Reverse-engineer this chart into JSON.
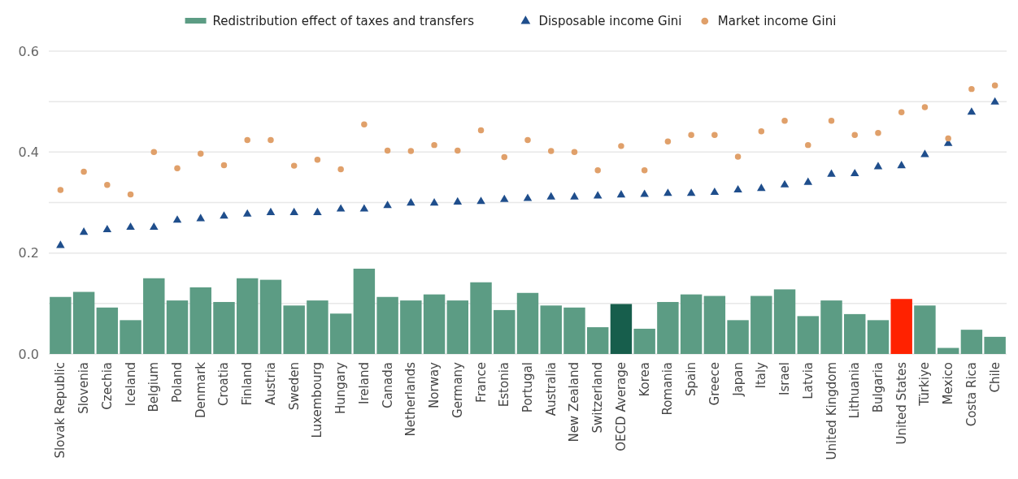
{
  "chart_data": {
    "type": "bar",
    "categories": [
      "Slovak Republic",
      "Slovenia",
      "Czechia",
      "Iceland",
      "Belgium",
      "Poland",
      "Denmark",
      "Croatia",
      "Finland",
      "Austria",
      "Sweden",
      "Luxembourg",
      "Hungary",
      "Ireland",
      "Canada",
      "Netherlands",
      "Norway",
      "Germany",
      "France",
      "Estonia",
      "Portugal",
      "Australia",
      "New Zealand",
      "Switzerland",
      "OECD Average",
      "Korea",
      "Romania",
      "Spain",
      "Greece",
      "Japan",
      "Italy",
      "Israel",
      "Latvia",
      "United Kingdom",
      "Lithuania",
      "Bulgaria",
      "United States",
      "Türkiye",
      "Mexico",
      "Costa Rica",
      "Chile"
    ],
    "series": [
      {
        "name": "Redistribution effect of taxes and transfers",
        "color": "#5c9c84",
        "colors": [
          "#5c9c84",
          "#5c9c84",
          "#5c9c84",
          "#5c9c84",
          "#5c9c84",
          "#5c9c84",
          "#5c9c84",
          "#5c9c84",
          "#5c9c84",
          "#5c9c84",
          "#5c9c84",
          "#5c9c84",
          "#5c9c84",
          "#5c9c84",
          "#5c9c84",
          "#5c9c84",
          "#5c9c84",
          "#5c9c84",
          "#5c9c84",
          "#5c9c84",
          "#5c9c84",
          "#5c9c84",
          "#5c9c84",
          "#5c9c84",
          "#175e4c",
          "#5c9c84",
          "#5c9c84",
          "#5c9c84",
          "#5c9c84",
          "#5c9c84",
          "#5c9c84",
          "#5c9c84",
          "#5c9c84",
          "#5c9c84",
          "#5c9c84",
          "#5c9c84",
          "#ff2200",
          "#5c9c84",
          "#5c9c84",
          "#5c9c84",
          "#5c9c84"
        ],
        "values": [
          0.113,
          0.123,
          0.092,
          0.067,
          0.15,
          0.106,
          0.132,
          0.103,
          0.15,
          0.147,
          0.096,
          0.106,
          0.08,
          0.169,
          0.113,
          0.106,
          0.118,
          0.106,
          0.142,
          0.087,
          0.121,
          0.096,
          0.092,
          0.053,
          0.099,
          0.05,
          0.103,
          0.118,
          0.115,
          0.067,
          0.115,
          0.128,
          0.075,
          0.106,
          0.079,
          0.067,
          0.109,
          0.096,
          0.012,
          0.048,
          0.034
        ]
      },
      {
        "name": "Disposable income Gini",
        "type": "scatter",
        "marker": "triangle",
        "color": "#1f4e8c",
        "values": [
          0.215,
          0.241,
          0.246,
          0.251,
          0.251,
          0.265,
          0.268,
          0.273,
          0.277,
          0.28,
          0.28,
          0.28,
          0.287,
          0.287,
          0.294,
          0.299,
          0.299,
          0.301,
          0.302,
          0.306,
          0.308,
          0.311,
          0.311,
          0.313,
          0.315,
          0.316,
          0.318,
          0.318,
          0.32,
          0.325,
          0.328,
          0.335,
          0.34,
          0.356,
          0.357,
          0.371,
          0.373,
          0.395,
          0.417,
          0.479,
          0.499
        ]
      },
      {
        "name": "Market income Gini",
        "type": "scatter",
        "marker": "circle",
        "color": "#e0a06a",
        "values": [
          0.325,
          0.361,
          0.335,
          0.316,
          0.4,
          0.368,
          0.397,
          0.374,
          0.424,
          0.424,
          0.373,
          0.385,
          0.366,
          0.455,
          0.403,
          0.402,
          0.414,
          0.403,
          0.443,
          0.39,
          0.424,
          0.402,
          0.4,
          0.364,
          0.412,
          0.364,
          0.421,
          0.434,
          0.434,
          0.391,
          0.441,
          0.462,
          0.414,
          0.462,
          0.434,
          0.438,
          0.479,
          0.489,
          0.427,
          0.525,
          0.532
        ]
      }
    ],
    "ylim": [
      0,
      0.6
    ],
    "yticks": [
      {
        "value": 0,
        "label": "0.0"
      },
      {
        "value": 0.1,
        "label": null
      },
      0.2,
      {
        "value": 0.3,
        "label": null
      },
      0.4,
      {
        "value": 0.5,
        "label": null
      },
      0.6
    ],
    "grid": "y",
    "legend": "top"
  }
}
